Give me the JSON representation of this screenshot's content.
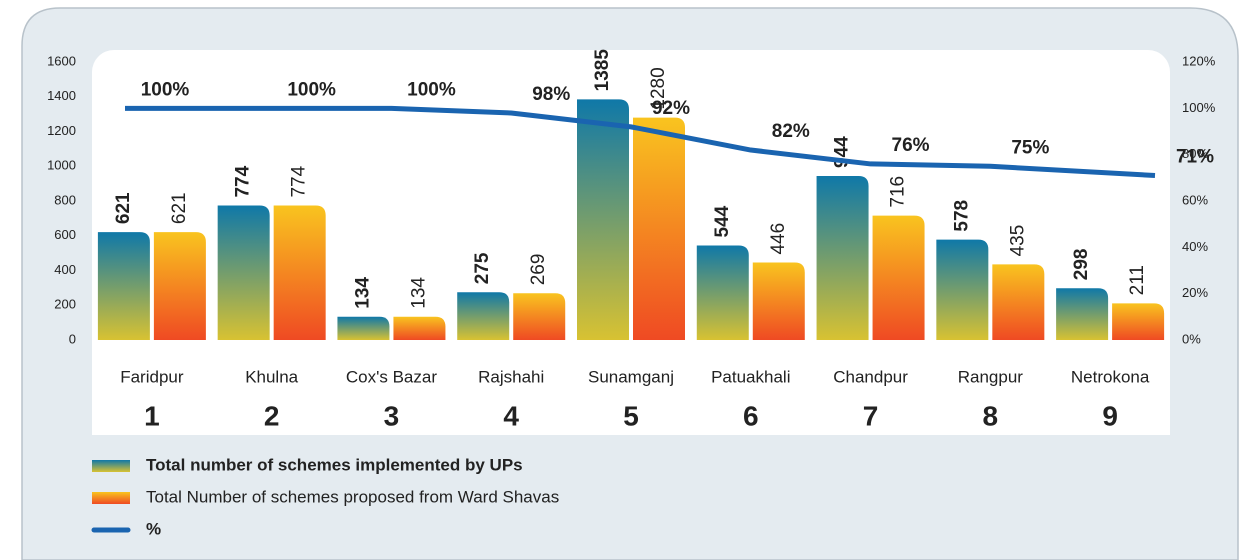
{
  "chart_data": {
    "type": "bar",
    "categories": [
      "Faridpur",
      "Khulna",
      "Cox's Bazar",
      "Rajshahi",
      "Sunamganj",
      "Patuakhali",
      "Chandpur",
      "Rangpur",
      "Netrokona"
    ],
    "category_numbers": [
      1,
      2,
      3,
      4,
      5,
      6,
      7,
      8,
      9
    ],
    "series": [
      {
        "name": "Total number of schemes implemented by UPs",
        "color": [
          "#0f78a8",
          "#d8c232"
        ],
        "values": [
          621,
          774,
          134,
          275,
          1385,
          544,
          944,
          578,
          298
        ]
      },
      {
        "name": "Total Number of schemes proposed from Ward Shavas",
        "color": [
          "#f9c41f",
          "#ef4a23"
        ],
        "values": [
          621,
          774,
          134,
          269,
          1280,
          446,
          716,
          435,
          211
        ]
      },
      {
        "name": "%",
        "type": "line",
        "axis": "y2",
        "color": "#1a64b0",
        "values": [
          100,
          100,
          100,
          98,
          92,
          82,
          76,
          75,
          71
        ],
        "value_labels": [
          "100%",
          "100%",
          "100%",
          "98%",
          "92%",
          "82%",
          "76%",
          "75%",
          "71%"
        ]
      }
    ],
    "ylim": [
      0,
      1600
    ],
    "yticks": [
      0,
      200,
      400,
      600,
      800,
      1000,
      1200,
      1400,
      1600
    ],
    "y2lim": [
      0,
      120
    ],
    "y2ticks": [
      {
        "value": 0,
        "label": "0%"
      },
      {
        "value": 20,
        "label": "20%"
      },
      {
        "value": 40,
        "label": "40%"
      },
      {
        "value": 60,
        "label": "60%"
      },
      {
        "value": 80,
        "label": "80%"
      },
      {
        "value": 100,
        "label": "100%"
      },
      {
        "value": 120,
        "label": "120%"
      }
    ],
    "legend": "bottom-left"
  }
}
